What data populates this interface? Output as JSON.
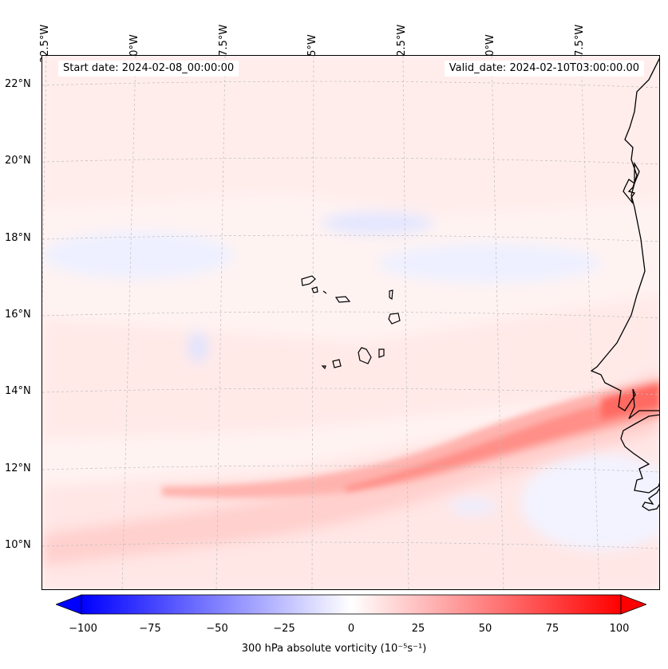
{
  "map": {
    "start_label": "Start date: 2024-02-08_00:00:00",
    "valid_label": "Valid_date: 2024-02-10T03:00:00.00",
    "lon_labels": [
      "32.5°W",
      "30°W",
      "27.5°W",
      "25°W",
      "22.5°W",
      "20°W",
      "17.5°W"
    ],
    "lat_labels": [
      "22°N",
      "20°N",
      "18°N",
      "16°N",
      "14°N",
      "12°N",
      "10°N"
    ],
    "gridlines": true,
    "coastline_color": "#000000",
    "shading_field": "300 hPa absolute vorticity",
    "colormap": "bwr",
    "feature": "positive vorticity band from ~10°N 32.5°W to ~14°N 16°W"
  },
  "colorbar": {
    "label": "300 hPa absolute vorticity (10⁻⁵s⁻¹)",
    "ticks": [
      "−100",
      "−75",
      "−50",
      "−25",
      "0",
      "25",
      "50",
      "75",
      "100"
    ],
    "min": -100,
    "max": 100,
    "extend": "both",
    "low_color": "#0000ff",
    "mid_color": "#ffffff",
    "high_color": "#ff0000"
  }
}
